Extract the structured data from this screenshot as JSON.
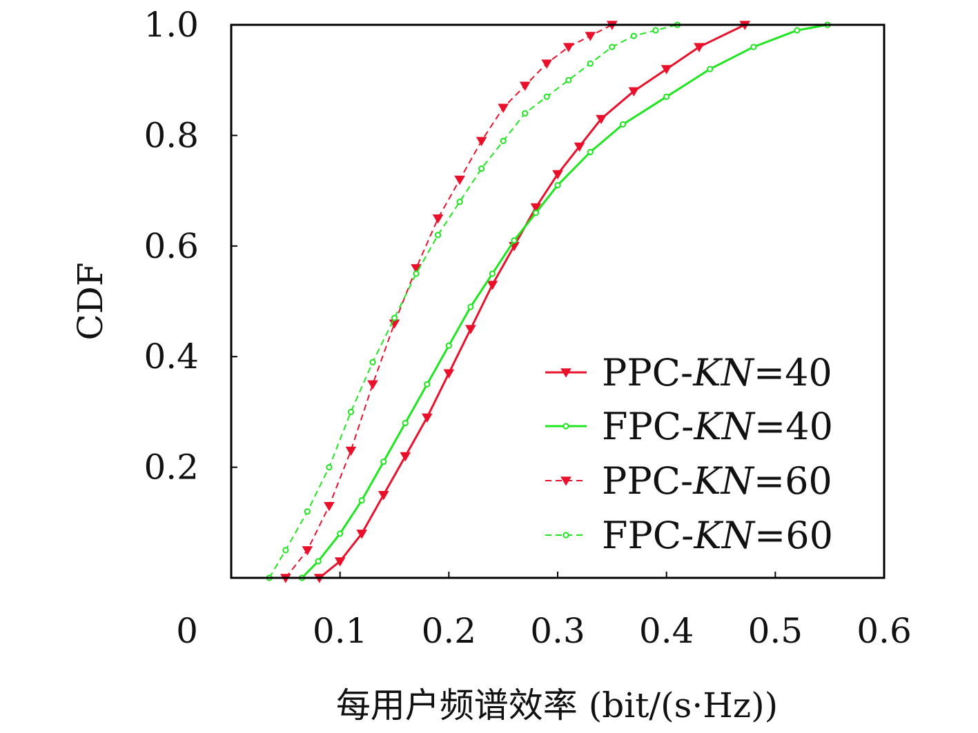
{
  "chart_data": {
    "type": "line",
    "title": "",
    "xlabel": "每用户频谱效率 (bit/(s·Hz))",
    "ylabel": "CDF",
    "xlim": [
      0,
      0.6
    ],
    "ylim": [
      0,
      1.0
    ],
    "x_ticks": [
      "0",
      "0.1",
      "0.2",
      "0.3",
      "0.4",
      "0.5",
      "0.6"
    ],
    "y_ticks": [
      "0.2",
      "0.4",
      "0.6",
      "0.8",
      "1.0"
    ],
    "grid": false,
    "legend_position": "bottom-right",
    "series": [
      {
        "name_parts": [
          "PPC-",
          "KN",
          "=40"
        ],
        "color": "#e8102a",
        "line_style": "solid",
        "marker": "triangle-down",
        "x": [
          0.081,
          0.1,
          0.12,
          0.14,
          0.16,
          0.18,
          0.2,
          0.22,
          0.24,
          0.26,
          0.28,
          0.3,
          0.32,
          0.34,
          0.37,
          0.4,
          0.43,
          0.472
        ],
        "y": [
          0.0,
          0.03,
          0.08,
          0.15,
          0.22,
          0.29,
          0.37,
          0.45,
          0.53,
          0.6,
          0.67,
          0.73,
          0.78,
          0.83,
          0.88,
          0.92,
          0.96,
          1.0
        ]
      },
      {
        "name_parts": [
          "FPC-",
          "KN",
          "=40"
        ],
        "color": "#1ee61e",
        "line_style": "solid",
        "marker": "circle",
        "x": [
          0.065,
          0.08,
          0.1,
          0.12,
          0.14,
          0.16,
          0.18,
          0.2,
          0.22,
          0.24,
          0.26,
          0.28,
          0.3,
          0.33,
          0.36,
          0.4,
          0.44,
          0.48,
          0.52,
          0.548
        ],
        "y": [
          0.0,
          0.03,
          0.08,
          0.14,
          0.21,
          0.28,
          0.35,
          0.42,
          0.49,
          0.55,
          0.61,
          0.66,
          0.71,
          0.77,
          0.82,
          0.87,
          0.92,
          0.96,
          0.99,
          1.0
        ]
      },
      {
        "name_parts": [
          "PPC-",
          "KN",
          "=60"
        ],
        "color": "#e8102a",
        "line_style": "dashed",
        "marker": "triangle-down",
        "x": [
          0.05,
          0.07,
          0.09,
          0.11,
          0.13,
          0.15,
          0.17,
          0.19,
          0.21,
          0.23,
          0.25,
          0.27,
          0.29,
          0.31,
          0.33,
          0.35
        ],
        "y": [
          0.0,
          0.05,
          0.13,
          0.23,
          0.35,
          0.46,
          0.56,
          0.65,
          0.72,
          0.79,
          0.85,
          0.89,
          0.93,
          0.96,
          0.98,
          1.0
        ]
      },
      {
        "name_parts": [
          "FPC-",
          "KN",
          "=60"
        ],
        "color": "#1ee61e",
        "line_style": "dashed",
        "marker": "circle",
        "x": [
          0.035,
          0.05,
          0.07,
          0.09,
          0.11,
          0.13,
          0.15,
          0.17,
          0.19,
          0.21,
          0.23,
          0.25,
          0.27,
          0.29,
          0.31,
          0.33,
          0.35,
          0.37,
          0.39,
          0.41
        ],
        "y": [
          0.0,
          0.05,
          0.12,
          0.2,
          0.3,
          0.39,
          0.47,
          0.55,
          0.62,
          0.68,
          0.74,
          0.79,
          0.84,
          0.87,
          0.9,
          0.93,
          0.96,
          0.98,
          0.99,
          1.0
        ]
      }
    ]
  }
}
